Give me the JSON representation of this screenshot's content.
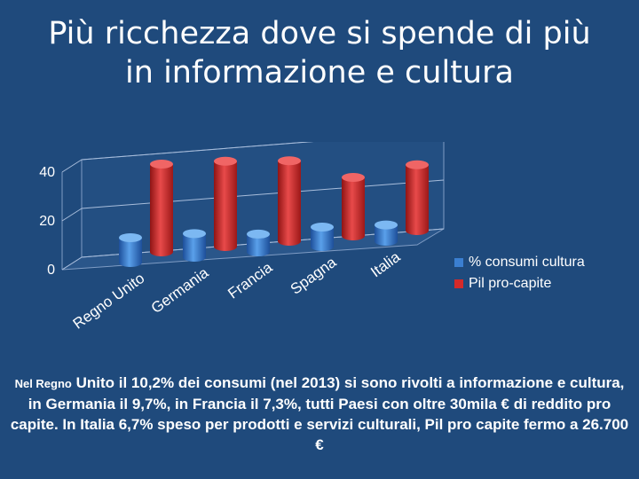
{
  "slide": {
    "title_line1": "Più ricchezza dove si spende di più",
    "title_line2": "in informazione e cultura",
    "caption_prefix": "Nel Regno",
    "caption_rest": " Unito il 10,2% dei consumi (nel 2013) si sono rivolti a informazione e cultura, in Germania il 9,7%, in Francia il 7,3%, tutti Paesi con oltre 30mila € di reddito pro capite. In Italia 6,7% speso per prodotti e servizi culturali, Pil pro capite fermo a 26.700 €"
  },
  "colors": {
    "background": "#1f4a7c",
    "culture": "#3b7fd1",
    "pil": "#d42a2a"
  },
  "chart_data": {
    "type": "bar",
    "categories": [
      "Regno Unito",
      "Germania",
      "Francia",
      "Spagna",
      "Italia"
    ],
    "series": [
      {
        "name": "% consumi cultura",
        "values": [
          10.2,
          9.7,
          7.3,
          8,
          6.7
        ]
      },
      {
        "name": "Pil pro-capite",
        "values": [
          36,
          35,
          33,
          24,
          27
        ]
      }
    ],
    "ylim": [
      0,
      40
    ],
    "yticks": [
      "0",
      "20",
      "40"
    ],
    "grid": true,
    "legend_position": "right"
  }
}
